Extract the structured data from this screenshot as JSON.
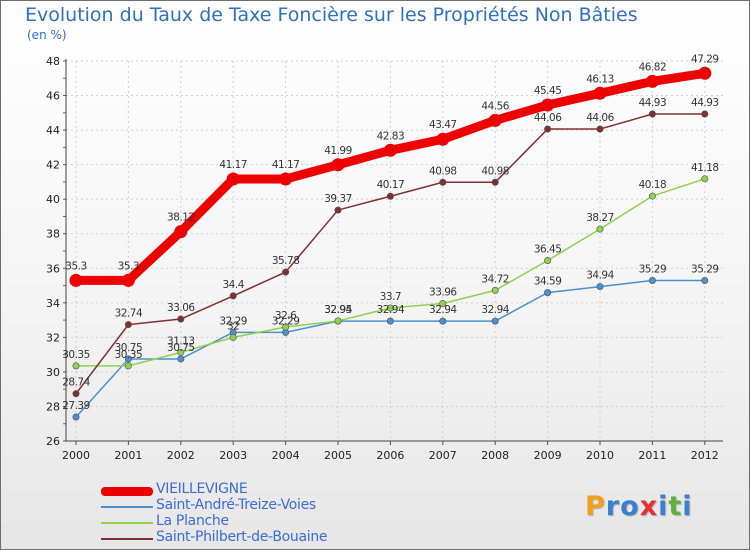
{
  "title": "Evolution du Taux de Taxe Foncière sur les Propriétés Non Bâties",
  "unit_label": "(en %)",
  "logo": {
    "text": "Proxiti",
    "letters": [
      {
        "ch": "P",
        "color": "#f0a020"
      },
      {
        "ch": "r",
        "color": "#3a7fd0"
      },
      {
        "ch": "o",
        "color": "#3a7fd0"
      },
      {
        "ch": "x",
        "color": "#e03030"
      },
      {
        "ch": "i",
        "color": "#3a7fd0"
      },
      {
        "ch": "t",
        "color": "#60b040"
      },
      {
        "ch": "i",
        "color": "#3a7fd0"
      }
    ]
  },
  "chart_data": {
    "type": "line",
    "title": "Evolution du Taux de Taxe Foncière sur les Propriétés Non Bâties",
    "ylabel": "(en %)",
    "xlabel": "",
    "x": [
      2000,
      2001,
      2002,
      2003,
      2004,
      2005,
      2006,
      2007,
      2008,
      2009,
      2010,
      2011,
      2012
    ],
    "ylim": [
      26,
      48
    ],
    "yticks": [
      26,
      28,
      30,
      32,
      34,
      36,
      38,
      40,
      42,
      44,
      46,
      48
    ],
    "grid": true,
    "legend_position": "bottom-left",
    "series": [
      {
        "name": "VIEILLEVIGNE",
        "color": "#ee0000",
        "emphasis": true,
        "values": [
          35.3,
          35.3,
          38.12,
          41.17,
          41.17,
          41.99,
          42.83,
          43.47,
          44.56,
          45.45,
          46.13,
          46.82,
          47.29
        ],
        "labels": [
          "35.3",
          "35.3",
          "38.12",
          "41.17",
          "41.17",
          "41.99",
          "42.83",
          "43.47",
          "44.56",
          "45.45",
          "46.13",
          "46.82",
          "47.29"
        ]
      },
      {
        "name": "Saint-André-Treize-Voies",
        "color": "#4a90d0",
        "emphasis": false,
        "values": [
          27.39,
          30.75,
          30.75,
          32.29,
          32.29,
          32.94,
          32.94,
          32.94,
          32.94,
          34.59,
          34.94,
          35.29,
          35.29
        ],
        "labels": [
          "27.39",
          "30.75",
          "30.75",
          "32.29",
          "32.29",
          "32.94",
          "32.94",
          "32.94",
          "32.94",
          "34.59",
          "34.94",
          "35.29",
          "35.29"
        ]
      },
      {
        "name": "La Planche",
        "color": "#90d050",
        "emphasis": false,
        "values": [
          30.35,
          30.35,
          31.13,
          32.0,
          32.6,
          32.95,
          33.7,
          33.96,
          34.72,
          36.45,
          38.27,
          40.18,
          41.18
        ],
        "labels": [
          "30.35",
          "30.35",
          "31.13",
          "32",
          "32.6",
          "32.95",
          "33.7",
          "33.96",
          "34.72",
          "36.45",
          "38.27",
          "40.18",
          "41.18"
        ]
      },
      {
        "name": "Saint-Philbert-de-Bouaine",
        "color": "#803030",
        "emphasis": false,
        "values": [
          28.74,
          32.74,
          33.06,
          34.4,
          35.78,
          39.37,
          40.17,
          40.98,
          40.98,
          44.06,
          44.06,
          44.93,
          44.93
        ],
        "labels": [
          "28.74",
          "32.74",
          "33.06",
          "34.4",
          "35.78",
          "39.37",
          "40.17",
          "40.98",
          "40.98",
          "44.06",
          "44.06",
          "44.93",
          "44.93"
        ]
      }
    ]
  }
}
